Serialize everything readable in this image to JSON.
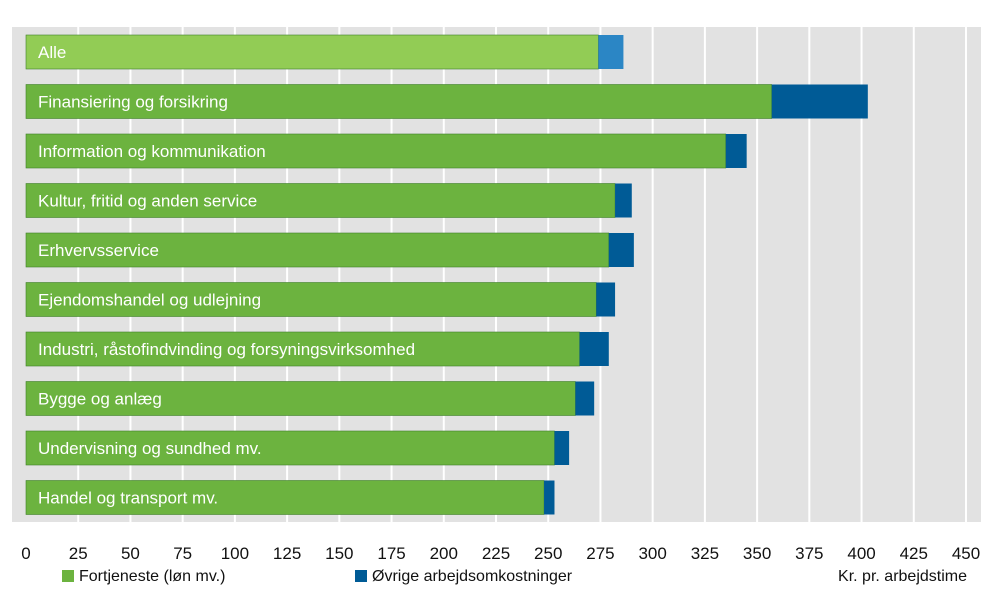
{
  "chart_data": {
    "type": "bar",
    "orientation": "horizontal",
    "stacked": true,
    "title": "",
    "categories": [
      "Alle",
      "Finansiering og forsikring",
      "Information og kommunikation",
      "Kultur, fritid og anden service",
      "Erhvervsservice",
      "Ejendomshandel og udlejning",
      "Industri, råstofindvinding og forsyningsvirksomhed",
      "Bygge og anlæg",
      "Undervisning og sundhed mv.",
      "Handel og transport mv."
    ],
    "series": [
      {
        "name": "Fortjeneste (løn mv.)",
        "values": [
          274,
          357,
          335,
          282,
          279,
          273,
          265,
          263,
          253,
          248
        ]
      },
      {
        "name": "Øvrige arbejdsomkostninger",
        "values": [
          12,
          46,
          10,
          8,
          12,
          9,
          14,
          9,
          7,
          5
        ]
      }
    ],
    "xticks": [
      "0",
      "25",
      "50",
      "75",
      "100",
      "125",
      "150",
      "175",
      "200",
      "225",
      "250",
      "275",
      "300",
      "325",
      "350",
      "375",
      "400",
      "425",
      "450"
    ],
    "xlim": [
      0,
      450
    ],
    "xlabel": "Kr. pr. arbejdstime",
    "grid": true,
    "legend_position": "bottom",
    "colors": {
      "fortjeneste": "#6cb33f",
      "oevrige": "#005b96",
      "alle_fortjeneste": "#92cc55",
      "alle_oevrige": "#2b86c5",
      "plot_background": "#e2e2e2",
      "grid": "#ffffff"
    }
  }
}
